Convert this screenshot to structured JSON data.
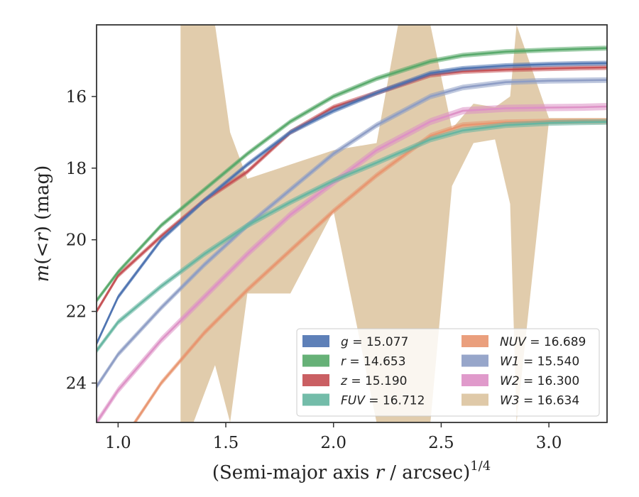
{
  "chart_data": {
    "type": "area",
    "xlabel": "(Semi-major axis r / arcsec)^1/4",
    "xlabel_parts": {
      "prefix": "(Semi-major axis ",
      "var": "r",
      "middle": " / arcsec)",
      "sup": "1/4"
    },
    "ylabel": "m(<r) (mag)",
    "ylabel_parts": {
      "m": "m",
      "open": "(<",
      "r": "r",
      "close": ")",
      "unit": " (mag)"
    },
    "xlim": [
      0.9,
      3.27
    ],
    "ylim": [
      25.1,
      14.0
    ],
    "y_inverted": true,
    "grid": false,
    "legend_position": "lower-right",
    "xticks": [
      1.0,
      1.5,
      2.0,
      2.5,
      3.0
    ],
    "xtick_labels": [
      "1.0",
      "1.5",
      "2.0",
      "2.5",
      "3.0"
    ],
    "yticks": [
      16,
      18,
      20,
      22,
      24
    ],
    "ytick_labels": [
      "16",
      "18",
      "20",
      "22",
      "24"
    ],
    "series": [
      {
        "name": "g",
        "legend_band": "g",
        "legend_value": "= 15.077",
        "color": "#4c72b0",
        "x": [
          0.9,
          1.0,
          1.2,
          1.4,
          1.6,
          1.8,
          2.0,
          2.2,
          2.45,
          2.6,
          2.8,
          3.0,
          3.15,
          3.27
        ],
        "y": [
          22.9,
          21.6,
          20.0,
          18.9,
          17.9,
          17.0,
          16.4,
          15.9,
          15.35,
          15.22,
          15.14,
          15.1,
          15.08,
          15.07
        ],
        "band": 0.07
      },
      {
        "name": "r",
        "legend_band": "r",
        "legend_value": "= 14.653",
        "color": "#55a868",
        "x": [
          0.9,
          1.0,
          1.2,
          1.4,
          1.6,
          1.8,
          2.0,
          2.2,
          2.45,
          2.6,
          2.8,
          3.0,
          3.15,
          3.27
        ],
        "y": [
          21.7,
          20.9,
          19.6,
          18.6,
          17.6,
          16.7,
          16.0,
          15.5,
          15.02,
          14.85,
          14.75,
          14.7,
          14.67,
          14.65
        ],
        "band": 0.07
      },
      {
        "name": "z",
        "legend_band": "z",
        "legend_value": "= 15.190",
        "color": "#c44e52",
        "x": [
          0.9,
          1.0,
          1.2,
          1.4,
          1.6,
          1.8,
          2.0,
          2.2,
          2.45,
          2.6,
          2.8,
          3.0,
          3.15,
          3.27
        ],
        "y": [
          22.0,
          21.0,
          19.9,
          18.9,
          18.1,
          17.0,
          16.3,
          15.9,
          15.4,
          15.3,
          15.25,
          15.22,
          15.2,
          15.19
        ],
        "band": 0.07
      },
      {
        "name": "FUV",
        "legend_band": "FUV",
        "legend_value": "= 16.712",
        "color": "#64b5a0",
        "x": [
          0.9,
          1.0,
          1.2,
          1.4,
          1.6,
          1.8,
          2.0,
          2.2,
          2.45,
          2.6,
          2.8,
          3.0,
          3.15,
          3.27
        ],
        "y": [
          23.1,
          22.3,
          21.3,
          20.4,
          19.6,
          18.95,
          18.35,
          17.85,
          17.2,
          16.95,
          16.8,
          16.74,
          16.72,
          16.71
        ],
        "band": 0.08
      },
      {
        "name": "NUV",
        "legend_band": "NUV",
        "legend_value": "= 16.689",
        "color": "#e8956f",
        "x": [
          0.9,
          1.0,
          1.2,
          1.4,
          1.6,
          1.8,
          2.0,
          2.2,
          2.45,
          2.6,
          2.8,
          3.0,
          3.15,
          3.27
        ],
        "y": [
          27.0,
          25.8,
          24.0,
          22.6,
          21.4,
          20.3,
          19.2,
          18.2,
          17.1,
          16.8,
          16.72,
          16.7,
          16.69,
          16.69
        ],
        "band": 0.08
      },
      {
        "name": "W1",
        "legend_band": "W1",
        "legend_value": "= 15.540",
        "color": "#8c9cc4",
        "x": [
          0.9,
          1.0,
          1.2,
          1.4,
          1.6,
          1.8,
          2.0,
          2.2,
          2.45,
          2.6,
          2.8,
          3.0,
          3.15,
          3.27
        ],
        "y": [
          24.1,
          23.2,
          21.9,
          20.7,
          19.6,
          18.6,
          17.6,
          16.8,
          16.0,
          15.75,
          15.6,
          15.56,
          15.55,
          15.54
        ],
        "band": 0.08
      },
      {
        "name": "W2",
        "legend_band": "W2",
        "legend_value": "= 16.300",
        "color": "#dd8fc5",
        "x": [
          0.9,
          1.0,
          1.2,
          1.4,
          1.6,
          1.8,
          2.0,
          2.2,
          2.45,
          2.6,
          2.8,
          3.0,
          3.15,
          3.27
        ],
        "y": [
          25.1,
          24.2,
          22.8,
          21.6,
          20.4,
          19.3,
          18.4,
          17.5,
          16.7,
          16.4,
          16.33,
          16.31,
          16.3,
          16.28
        ],
        "band": 0.1
      },
      {
        "name": "W3",
        "legend_band": "W3",
        "legend_value": "= 16.634",
        "color": "#dcc39e",
        "x": [
          1.29,
          1.35,
          1.45,
          1.52,
          1.6,
          1.8,
          2.0,
          2.2,
          2.3,
          2.45,
          2.55,
          2.65,
          2.75,
          2.82,
          2.85,
          3.0,
          3.27
        ],
        "y": [
          20.2,
          19.4,
          18.9,
          18.5,
          18.4,
          18.1,
          17.8,
          17.6,
          17.4,
          17.1,
          16.9,
          16.7,
          16.65,
          16.63,
          16.64,
          16.63,
          16.63
        ],
        "band_upper": [
          14.0,
          14.0,
          14.0,
          17.0,
          18.3,
          17.9,
          17.5,
          17.3,
          14.0,
          14.0,
          16.9,
          16.2,
          16.3,
          16.0,
          14.0,
          16.6,
          16.6
        ],
        "band_lower": [
          25.1,
          25.1,
          23.5,
          25.1,
          21.5,
          21.5,
          19.2,
          25.1,
          25.1,
          25.1,
          18.5,
          17.3,
          17.2,
          19.0,
          25.1,
          16.7,
          16.7
        ]
      }
    ]
  }
}
